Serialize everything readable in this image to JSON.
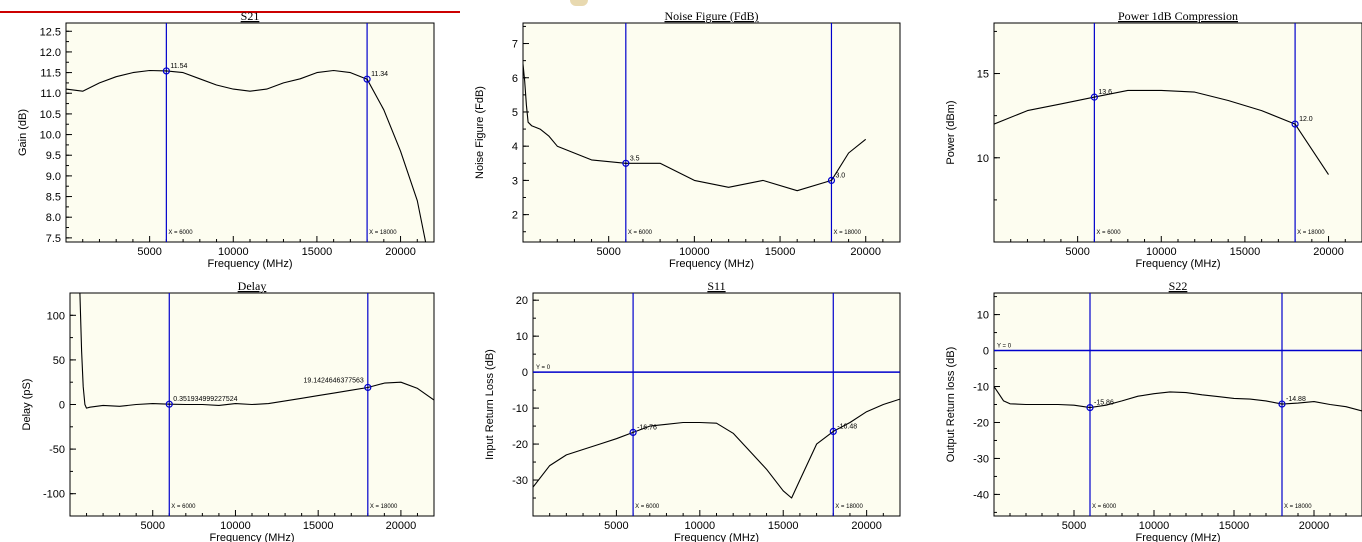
{
  "colors": {
    "plot_bg": "#fdfdf0",
    "curve": "#000000",
    "marker_line": "#0000cc",
    "header_rule": "#cc0000"
  },
  "chart_data": [
    {
      "type": "line",
      "title": "S21",
      "xlabel": "Frequency (MHz)",
      "ylabel": "Gain (dB)",
      "xlim": [
        0,
        22000
      ],
      "ylim": [
        7.4,
        12.7
      ],
      "xticks": [
        5000,
        10000,
        15000,
        20000
      ],
      "xtick_labels": [
        "5000",
        "10000",
        "15000",
        "20000"
      ],
      "yticks": [
        7.5,
        8.0,
        8.5,
        9.0,
        9.5,
        10.0,
        10.5,
        11.0,
        11.5,
        12.0,
        12.5
      ],
      "ytick_labels": [
        "7.5",
        "8.0",
        "8.5",
        "9.0",
        "9.5",
        "10.0",
        "10.5",
        "11.0",
        "11.5",
        "12.0",
        "12.5"
      ],
      "series": [
        {
          "x": [
            0,
            1000,
            2000,
            3000,
            4000,
            5000,
            6000,
            7000,
            8000,
            9000,
            10000,
            11000,
            12000,
            13000,
            14000,
            15000,
            16000,
            17000,
            18000,
            19000,
            20000,
            21000,
            21500
          ],
          "y": [
            11.1,
            11.05,
            11.25,
            11.4,
            11.5,
            11.55,
            11.54,
            11.5,
            11.35,
            11.2,
            11.1,
            11.05,
            11.1,
            11.25,
            11.35,
            11.5,
            11.55,
            11.5,
            11.34,
            10.6,
            9.6,
            8.4,
            7.4
          ]
        }
      ],
      "hline": null,
      "markers": [
        {
          "x": 6000,
          "y": 11.54,
          "label": "11.54",
          "xlabel": "X = 6000"
        },
        {
          "x": 18000,
          "y": 11.34,
          "label": "11.34",
          "xlabel": "X = 18000"
        }
      ]
    },
    {
      "type": "line",
      "title": "Noise Figure (FdB)",
      "xlabel": "Frequency (MHz)",
      "ylabel": "Noise Figure (FdB)",
      "xlim": [
        0,
        22000
      ],
      "ylim": [
        1.2,
        7.6
      ],
      "xticks": [
        5000,
        10000,
        15000,
        20000
      ],
      "xtick_labels": [
        "5000",
        "10000",
        "15000",
        "20000"
      ],
      "yticks": [
        2,
        3,
        4,
        5,
        6,
        7
      ],
      "ytick_labels": [
        "2",
        "3",
        "4",
        "5",
        "6",
        "7"
      ],
      "series": [
        {
          "x": [
            0,
            100,
            200,
            300,
            500,
            1000,
            1500,
            2000,
            4000,
            6000,
            8000,
            10000,
            12000,
            14000,
            16000,
            18000,
            19000,
            20000
          ],
          "y": [
            6.4,
            5.9,
            5.2,
            4.7,
            4.6,
            4.5,
            4.3,
            4.0,
            3.6,
            3.5,
            3.5,
            3.0,
            2.8,
            3.0,
            2.7,
            3.0,
            3.8,
            4.2
          ]
        }
      ],
      "hline": null,
      "markers": [
        {
          "x": 6000,
          "y": 3.5,
          "label": "3.5",
          "xlabel": "X = 6000"
        },
        {
          "x": 18000,
          "y": 3.0,
          "label": "3.0",
          "xlabel": "X = 18000"
        }
      ]
    },
    {
      "type": "line",
      "title": "Power 1dB Compression",
      "xlabel": "Frequency (MHz)",
      "ylabel": "Power (dBm)",
      "xlim": [
        0,
        22000
      ],
      "ylim": [
        5,
        18
      ],
      "xticks": [
        5000,
        10000,
        15000,
        20000
      ],
      "xtick_labels": [
        "5000",
        "10000",
        "15000",
        "20000"
      ],
      "yticks": [
        10,
        15
      ],
      "ytick_labels": [
        "10",
        "15"
      ],
      "series": [
        {
          "x": [
            0,
            2000,
            4000,
            6000,
            8000,
            10000,
            12000,
            14000,
            16000,
            18000,
            20000
          ],
          "y": [
            12.0,
            12.8,
            13.2,
            13.6,
            14.0,
            14.0,
            13.9,
            13.4,
            12.8,
            12.0,
            9.0
          ]
        }
      ],
      "hline": null,
      "markers": [
        {
          "x": 6000,
          "y": 13.6,
          "label": "13.6",
          "xlabel": "X = 6000"
        },
        {
          "x": 18000,
          "y": 12.0,
          "label": "12.0",
          "xlabel": "X = 18000"
        }
      ]
    },
    {
      "type": "line",
      "title": "Delay",
      "xlabel": "Frequency (MHz)",
      "ylabel": "Delay (pS)",
      "xlim": [
        0,
        22000
      ],
      "ylim": [
        -125,
        125
      ],
      "xticks": [
        5000,
        10000,
        15000,
        20000
      ],
      "xtick_labels": [
        "5000",
        "10000",
        "15000",
        "20000"
      ],
      "yticks": [
        -100,
        -50,
        0,
        50,
        100
      ],
      "ytick_labels": [
        "-100",
        "-50",
        "0",
        "50",
        "100"
      ],
      "series": [
        {
          "x": [
            600,
            700,
            800,
            900,
            1000,
            1200,
            2000,
            3000,
            4000,
            5000,
            6000,
            7000,
            8000,
            9000,
            10000,
            11000,
            12000,
            13000,
            14000,
            15000,
            16000,
            17000,
            18000,
            19000,
            20000,
            21000,
            22000
          ],
          "y": [
            125,
            60,
            20,
            0,
            -4,
            -3,
            -1,
            -2,
            0,
            1,
            0.35,
            0,
            0,
            -1,
            1,
            0,
            1,
            4,
            7,
            10,
            13,
            16,
            19.1,
            24,
            25,
            18,
            5
          ]
        }
      ],
      "hline": null,
      "markers": [
        {
          "x": 6000,
          "y": 0.35,
          "label": "0.351934999227524",
          "xlabel": "X = 6000"
        },
        {
          "x": 18000,
          "y": 19.14,
          "label": "19.1424646377563",
          "xlabel": "X = 18000"
        }
      ]
    },
    {
      "type": "line",
      "title": "S11",
      "xlabel": "Frequency (MHz)",
      "ylabel": "Input Return Loss (dB)",
      "xlim": [
        0,
        22000
      ],
      "ylim": [
        -40,
        22
      ],
      "xticks": [
        5000,
        10000,
        15000,
        20000
      ],
      "xtick_labels": [
        "5000",
        "10000",
        "15000",
        "20000"
      ],
      "yticks": [
        -30,
        -20,
        -10,
        0,
        10,
        20
      ],
      "ytick_labels": [
        "-30",
        "-20",
        "-10",
        "0",
        "10",
        "20"
      ],
      "series": [
        {
          "x": [
            0,
            1000,
            2000,
            3000,
            4000,
            5000,
            6000,
            7000,
            8000,
            9000,
            10000,
            11000,
            12000,
            13000,
            14000,
            15000,
            15500,
            16000,
            17000,
            18000,
            19000,
            20000,
            21000,
            22000
          ],
          "y": [
            -32,
            -26,
            -23,
            -21.5,
            -20,
            -18.5,
            -16.76,
            -15,
            -14.5,
            -14,
            -14,
            -14.2,
            -17,
            -22,
            -27,
            -33,
            -35,
            -30,
            -20,
            -16.48,
            -14,
            -11,
            -9,
            -7.5
          ]
        }
      ],
      "hline": {
        "y": 0,
        "label": "Y = 0"
      },
      "markers": [
        {
          "x": 6000,
          "y": -16.76,
          "label": "-16.76",
          "xlabel": "X = 6000"
        },
        {
          "x": 18000,
          "y": -16.48,
          "label": "-16.48",
          "xlabel": "X = 18000"
        }
      ]
    },
    {
      "type": "line",
      "title": "S22",
      "xlabel": "Frequency (MHz)",
      "ylabel": "Output Return loss (dB)",
      "xlim": [
        0,
        23000
      ],
      "ylim": [
        -46,
        16
      ],
      "xticks": [
        5000,
        10000,
        15000,
        20000
      ],
      "xtick_labels": [
        "5000",
        "10000",
        "15000",
        "20000"
      ],
      "yticks": [
        -40,
        -30,
        -20,
        -10,
        0,
        10
      ],
      "ytick_labels": [
        "-40",
        "-30",
        "-20",
        "-10",
        "0",
        "10"
      ],
      "series": [
        {
          "x": [
            0,
            300,
            600,
            1000,
            2000,
            3000,
            4000,
            5000,
            6000,
            7000,
            8000,
            9000,
            10000,
            11000,
            12000,
            13000,
            14000,
            15000,
            16000,
            17000,
            18000,
            19000,
            20000,
            21000,
            22000,
            23000
          ],
          "y": [
            -10,
            -12,
            -14,
            -14.8,
            -15,
            -15,
            -15,
            -15.2,
            -15.86,
            -15.2,
            -14,
            -12.7,
            -12,
            -11.5,
            -11.7,
            -12.3,
            -12.8,
            -13.3,
            -13.5,
            -14,
            -14.88,
            -14.6,
            -14.2,
            -15,
            -15.6,
            -16.8
          ]
        }
      ],
      "hline": {
        "y": 0,
        "label": "Y = 0"
      },
      "markers": [
        {
          "x": 6000,
          "y": -15.86,
          "label": "-15.86",
          "xlabel": "X = 6000"
        },
        {
          "x": 18000,
          "y": -14.88,
          "label": "-14.88",
          "xlabel": "X = 18000"
        }
      ]
    }
  ]
}
